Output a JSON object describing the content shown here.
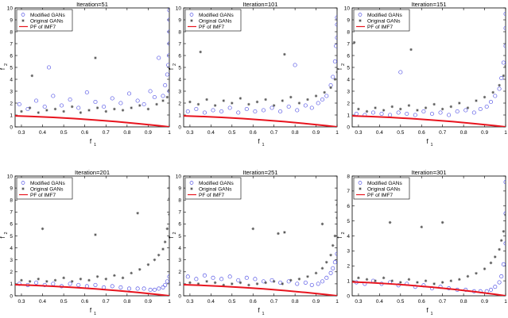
{
  "figure": {
    "legend_labels": [
      "Modified GANs",
      "Original GANs",
      "PF of IMF7"
    ],
    "xlabel": "f",
    "xlabel_sub": "1",
    "ylabel": "f",
    "ylabel_sub": "2"
  },
  "colors": {
    "modified": "#5a5ae6",
    "original": "#555555",
    "pareto_front": "#e8141e",
    "axes": "#000000"
  },
  "chart_data": [
    {
      "type": "scatter",
      "title": "Iteration=51",
      "xlim": [
        0.27,
        1.0
      ],
      "ylim": [
        0,
        10
      ],
      "xticks": [
        "0.3",
        "0.4",
        "0.5",
        "0.6",
        "0.7",
        "0.8",
        "0.9",
        "1"
      ],
      "yticks": [
        "0",
        "1",
        "2",
        "3",
        "4",
        "5",
        "6",
        "7",
        "8",
        "9",
        "10"
      ],
      "legend": "top-left",
      "series": [
        {
          "name": "Modified GANs",
          "marker": "circle",
          "x": [
            0.29,
            0.33,
            0.37,
            0.41,
            0.45,
            0.49,
            0.53,
            0.57,
            0.61,
            0.65,
            0.69,
            0.73,
            0.77,
            0.81,
            0.85,
            0.88,
            0.91,
            0.93,
            0.95,
            0.97,
            0.98,
            0.99,
            0.995,
            0.998,
            1.0,
            1.0,
            1.0,
            1.0,
            1.0,
            0.43
          ],
          "y": [
            1.9,
            1.5,
            2.2,
            1.7,
            2.6,
            1.8,
            2.3,
            1.6,
            2.9,
            2.1,
            1.7,
            2.4,
            2.0,
            2.8,
            2.2,
            1.9,
            3.0,
            2.5,
            5.8,
            2.6,
            3.5,
            4.4,
            5.2,
            6.0,
            7.0,
            8.0,
            9.0,
            9.8,
            3.0,
            5.0
          ]
        },
        {
          "name": "Original GANs",
          "marker": "star",
          "x": [
            0.3,
            0.34,
            0.38,
            0.42,
            0.46,
            0.5,
            0.54,
            0.58,
            0.62,
            0.66,
            0.7,
            0.74,
            0.78,
            0.82,
            0.86,
            0.9,
            0.94,
            0.97,
            0.99,
            1.0,
            0.35,
            0.65
          ],
          "y": [
            1.3,
            1.6,
            1.2,
            1.4,
            1.5,
            1.3,
            1.7,
            1.2,
            1.4,
            1.6,
            1.3,
            1.5,
            1.4,
            1.6,
            1.8,
            1.5,
            1.9,
            2.2,
            2.5,
            3.1,
            4.3,
            5.8
          ]
        },
        {
          "name": "PF of IMF7",
          "marker": "line",
          "x": [
            0.27,
            0.35,
            0.45,
            0.55,
            0.65,
            0.75,
            0.85,
            0.95,
            1.0
          ],
          "y": [
            0.926,
            0.878,
            0.798,
            0.698,
            0.578,
            0.438,
            0.278,
            0.098,
            0.0
          ]
        }
      ]
    },
    {
      "type": "scatter",
      "title": "Iteration=101",
      "xlim": [
        0.27,
        1.0
      ],
      "ylim": [
        0,
        10
      ],
      "xticks": [
        "0.3",
        "0.4",
        "0.5",
        "0.6",
        "0.7",
        "0.8",
        "0.9",
        "1"
      ],
      "yticks": [
        "0",
        "1",
        "2",
        "3",
        "4",
        "5",
        "6",
        "7",
        "8",
        "9",
        "10"
      ],
      "legend": "top-left",
      "series": [
        {
          "name": "Modified GANs",
          "marker": "circle",
          "x": [
            0.29,
            0.33,
            0.37,
            0.41,
            0.45,
            0.49,
            0.53,
            0.57,
            0.61,
            0.65,
            0.69,
            0.73,
            0.77,
            0.81,
            0.85,
            0.88,
            0.91,
            0.93,
            0.95,
            0.97,
            0.98,
            0.99,
            0.995,
            1.0,
            1.0,
            1.0,
            0.8
          ],
          "y": [
            1.3,
            1.5,
            1.2,
            1.4,
            1.3,
            1.6,
            1.2,
            1.5,
            1.3,
            1.4,
            1.6,
            1.3,
            1.7,
            1.4,
            1.8,
            1.6,
            2.0,
            2.3,
            2.6,
            3.5,
            4.2,
            5.5,
            6.8,
            7.5,
            8.6,
            9.2,
            5.2
          ]
        },
        {
          "name": "Original GANs",
          "marker": "star",
          "x": [
            0.3,
            0.34,
            0.38,
            0.42,
            0.46,
            0.5,
            0.54,
            0.58,
            0.62,
            0.66,
            0.7,
            0.74,
            0.78,
            0.82,
            0.86,
            0.9,
            0.94,
            0.97,
            0.99,
            1.0,
            0.35,
            0.75
          ],
          "y": [
            2.1,
            1.9,
            2.3,
            1.8,
            2.2,
            2.0,
            2.4,
            1.9,
            2.1,
            2.3,
            1.8,
            2.2,
            2.5,
            2.0,
            2.3,
            2.6,
            2.9,
            3.3,
            4.0,
            4.6,
            6.3,
            6.1
          ]
        },
        {
          "name": "PF of IMF7",
          "marker": "line",
          "x": [
            0.27,
            0.35,
            0.45,
            0.55,
            0.65,
            0.75,
            0.85,
            0.95,
            1.0
          ],
          "y": [
            0.926,
            0.878,
            0.798,
            0.698,
            0.578,
            0.438,
            0.278,
            0.098,
            0.0
          ]
        }
      ]
    },
    {
      "type": "scatter",
      "title": "Iteration=151",
      "xlim": [
        0.27,
        1.0
      ],
      "ylim": [
        0,
        10
      ],
      "xticks": [
        "0.3",
        "0.4",
        "0.5",
        "0.6",
        "0.7",
        "0.8",
        "0.9",
        "1"
      ],
      "yticks": [
        "0",
        "1",
        "2",
        "3",
        "4",
        "5",
        "6",
        "7",
        "8",
        "9",
        "10"
      ],
      "legend": "top-left",
      "series": [
        {
          "name": "Modified GANs",
          "marker": "circle",
          "x": [
            0.29,
            0.33,
            0.37,
            0.41,
            0.45,
            0.49,
            0.53,
            0.57,
            0.61,
            0.65,
            0.69,
            0.73,
            0.77,
            0.81,
            0.85,
            0.88,
            0.91,
            0.93,
            0.95,
            0.97,
            0.98,
            0.99,
            1.0,
            1.0,
            1.0,
            0.5
          ],
          "y": [
            1.1,
            1.0,
            1.2,
            1.1,
            1.0,
            1.2,
            1.1,
            1.0,
            1.3,
            1.1,
            1.2,
            1.0,
            1.3,
            1.4,
            1.2,
            1.5,
            1.7,
            2.1,
            2.6,
            3.2,
            4.1,
            5.4,
            6.8,
            8.3,
            9.5,
            4.6
          ]
        },
        {
          "name": "Original GANs",
          "marker": "star",
          "x": [
            0.3,
            0.34,
            0.38,
            0.42,
            0.46,
            0.5,
            0.54,
            0.58,
            0.62,
            0.66,
            0.7,
            0.74,
            0.78,
            0.82,
            0.86,
            0.9,
            0.94,
            0.97,
            0.99,
            1.0,
            0.28,
            0.55
          ],
          "y": [
            1.5,
            1.3,
            1.6,
            1.4,
            1.7,
            1.5,
            1.8,
            1.4,
            1.6,
            1.9,
            1.5,
            1.7,
            2.0,
            1.6,
            2.2,
            2.5,
            2.9,
            3.5,
            4.3,
            5.1,
            7.1,
            6.5
          ]
        },
        {
          "name": "PF of IMF7",
          "marker": "line",
          "x": [
            0.27,
            0.35,
            0.45,
            0.55,
            0.65,
            0.75,
            0.85,
            0.95,
            1.0
          ],
          "y": [
            0.926,
            0.878,
            0.798,
            0.698,
            0.578,
            0.438,
            0.278,
            0.098,
            0.0
          ]
        }
      ]
    },
    {
      "type": "scatter",
      "title": "Iteration=201",
      "xlim": [
        0.27,
        1.0
      ],
      "ylim": [
        0,
        10
      ],
      "xticks": [
        "0.3",
        "0.4",
        "0.5",
        "0.6",
        "0.7",
        "0.8",
        "0.9",
        "1"
      ],
      "yticks": [
        "0",
        "1",
        "2",
        "3",
        "4",
        "5",
        "6",
        "7",
        "8",
        "9",
        "10"
      ],
      "legend": "top-left",
      "series": [
        {
          "name": "Modified GANs",
          "marker": "circle",
          "x": [
            0.29,
            0.33,
            0.37,
            0.41,
            0.45,
            0.49,
            0.53,
            0.57,
            0.61,
            0.65,
            0.69,
            0.73,
            0.77,
            0.81,
            0.85,
            0.88,
            0.91,
            0.93,
            0.95,
            0.97,
            0.98,
            0.99,
            1.0
          ],
          "y": [
            1.0,
            0.9,
            1.1,
            0.9,
            1.0,
            0.8,
            1.0,
            0.9,
            0.8,
            0.9,
            0.7,
            0.8,
            0.7,
            0.6,
            0.6,
            0.6,
            0.5,
            0.5,
            0.6,
            0.7,
            0.9,
            1.2,
            1.6
          ]
        },
        {
          "name": "Original GANs",
          "marker": "star",
          "x": [
            0.3,
            0.34,
            0.38,
            0.42,
            0.46,
            0.5,
            0.54,
            0.58,
            0.62,
            0.66,
            0.7,
            0.74,
            0.78,
            0.82,
            0.86,
            0.9,
            0.93,
            0.95,
            0.97,
            0.98,
            0.99,
            1.0,
            1.0,
            1.0,
            0.4,
            0.65,
            0.85
          ],
          "y": [
            1.3,
            1.2,
            1.4,
            1.2,
            1.3,
            1.5,
            1.2,
            1.4,
            1.3,
            1.6,
            1.4,
            1.7,
            1.5,
            1.9,
            2.2,
            2.6,
            3.0,
            3.4,
            3.9,
            4.5,
            5.6,
            6.8,
            8.1,
            9.0,
            5.6,
            5.1,
            6.9
          ]
        },
        {
          "name": "PF of IMF7",
          "marker": "line",
          "x": [
            0.27,
            0.35,
            0.45,
            0.55,
            0.65,
            0.75,
            0.85,
            0.95,
            1.0
          ],
          "y": [
            0.926,
            0.878,
            0.798,
            0.698,
            0.578,
            0.438,
            0.278,
            0.098,
            0.0
          ]
        }
      ]
    },
    {
      "type": "scatter",
      "title": "Iteration=251",
      "xlim": [
        0.27,
        1.0
      ],
      "ylim": [
        0,
        10
      ],
      "xticks": [
        "0.3",
        "0.4",
        "0.5",
        "0.6",
        "0.7",
        "0.8",
        "0.9",
        "1"
      ],
      "yticks": [
        "0",
        "1",
        "2",
        "3",
        "4",
        "5",
        "6",
        "7",
        "8",
        "9",
        "10"
      ],
      "legend": "top-left",
      "series": [
        {
          "name": "Modified GANs",
          "marker": "circle",
          "x": [
            0.29,
            0.33,
            0.37,
            0.41,
            0.45,
            0.49,
            0.53,
            0.57,
            0.61,
            0.65,
            0.69,
            0.73,
            0.77,
            0.81,
            0.85,
            0.88,
            0.91,
            0.93,
            0.95,
            0.97,
            0.98,
            0.99,
            1.0
          ],
          "y": [
            1.6,
            1.4,
            1.7,
            1.5,
            1.4,
            1.6,
            1.3,
            1.5,
            1.4,
            1.2,
            1.3,
            1.1,
            1.2,
            1.0,
            1.1,
            0.9,
            1.0,
            1.2,
            1.5,
            1.9,
            2.3,
            2.8,
            3.5
          ]
        },
        {
          "name": "Original GANs",
          "marker": "star",
          "x": [
            0.3,
            0.34,
            0.38,
            0.42,
            0.46,
            0.5,
            0.54,
            0.58,
            0.62,
            0.66,
            0.7,
            0.74,
            0.78,
            0.82,
            0.86,
            0.9,
            0.93,
            0.95,
            0.97,
            0.98,
            0.99,
            1.0,
            1.0,
            0.6,
            0.72,
            0.75,
            0.93
          ],
          "y": [
            1.1,
            1.0,
            1.2,
            1.1,
            0.9,
            1.0,
            1.1,
            0.9,
            1.0,
            1.1,
            1.2,
            1.0,
            1.3,
            1.4,
            1.6,
            1.9,
            2.3,
            2.8,
            3.4,
            4.2,
            5.0,
            6.5,
            7.6,
            5.6,
            5.2,
            5.3,
            6.0
          ]
        },
        {
          "name": "PF of IMF7",
          "marker": "line",
          "x": [
            0.27,
            0.35,
            0.45,
            0.55,
            0.65,
            0.75,
            0.85,
            0.95,
            1.0
          ],
          "y": [
            0.926,
            0.878,
            0.798,
            0.698,
            0.578,
            0.438,
            0.278,
            0.098,
            0.0
          ]
        }
      ]
    },
    {
      "type": "scatter",
      "title": "Iteration=301",
      "xlim": [
        0.27,
        1.0
      ],
      "ylim": [
        0,
        8
      ],
      "xticks": [
        "0.3",
        "0.4",
        "0.5",
        "0.6",
        "0.7",
        "0.8",
        "0.9",
        "1"
      ],
      "yticks": [
        "0",
        "1",
        "2",
        "3",
        "4",
        "5",
        "6",
        "7",
        "8"
      ],
      "legend": "top-left",
      "series": [
        {
          "name": "Modified GANs",
          "marker": "circle",
          "x": [
            0.29,
            0.33,
            0.37,
            0.41,
            0.45,
            0.49,
            0.53,
            0.57,
            0.61,
            0.65,
            0.69,
            0.73,
            0.77,
            0.81,
            0.85,
            0.88,
            0.91,
            0.93,
            0.95,
            0.97,
            0.98,
            0.99,
            1.0,
            1.0,
            1.0
          ],
          "y": [
            0.9,
            0.8,
            1.0,
            0.8,
            0.9,
            0.7,
            0.8,
            0.6,
            0.7,
            0.5,
            0.6,
            0.5,
            0.4,
            0.4,
            0.3,
            0.3,
            0.3,
            0.4,
            0.6,
            0.9,
            1.3,
            2.1,
            3.5,
            5.5,
            7.6
          ]
        },
        {
          "name": "Original GANs",
          "marker": "star",
          "x": [
            0.3,
            0.34,
            0.38,
            0.42,
            0.46,
            0.5,
            0.54,
            0.58,
            0.62,
            0.66,
            0.7,
            0.74,
            0.78,
            0.82,
            0.86,
            0.9,
            0.93,
            0.95,
            0.97,
            0.98,
            0.99,
            1.0,
            0.45,
            0.6,
            0.7
          ],
          "y": [
            1.2,
            1.1,
            1.0,
            1.2,
            1.0,
            0.9,
            1.1,
            0.9,
            1.0,
            0.8,
            0.9,
            1.0,
            1.1,
            1.3,
            1.5,
            1.8,
            2.2,
            2.6,
            3.1,
            3.7,
            4.3,
            5.4,
            4.9,
            4.6,
            4.9
          ]
        },
        {
          "name": "PF of IMF7",
          "marker": "line",
          "x": [
            0.27,
            0.35,
            0.45,
            0.55,
            0.65,
            0.75,
            0.85,
            0.95,
            1.0
          ],
          "y": [
            0.926,
            0.878,
            0.798,
            0.698,
            0.578,
            0.438,
            0.278,
            0.098,
            0.0
          ]
        }
      ]
    }
  ]
}
